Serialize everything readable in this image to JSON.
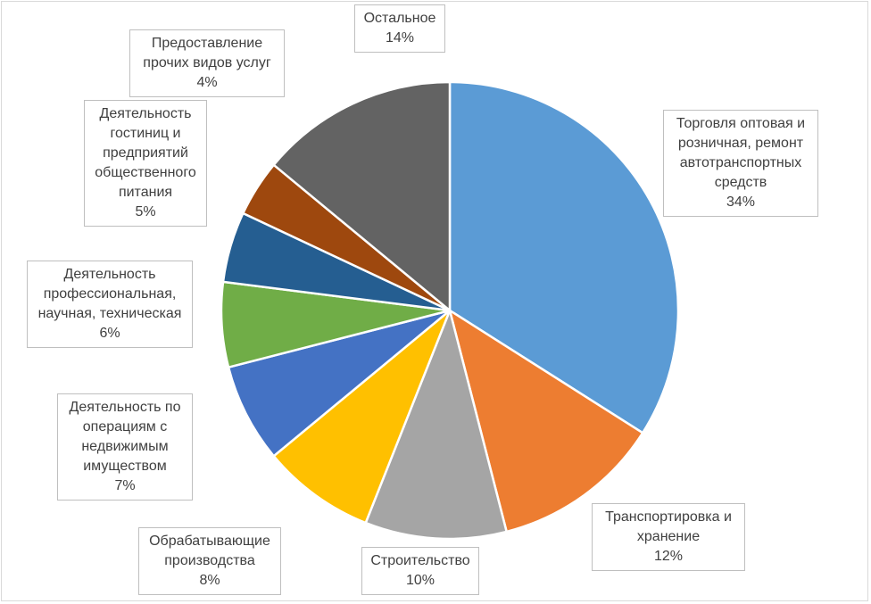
{
  "chart_data": {
    "type": "pie",
    "slices": [
      {
        "label_lines": [
          "Торговля оптовая и",
          "розничная, ремонт",
          "автотранспортных",
          "средств"
        ],
        "percent_label": "34%",
        "value": 34,
        "color": "#5b9bd5"
      },
      {
        "label_lines": [
          "Транспортировка и",
          "хранение"
        ],
        "percent_label": "12%",
        "value": 12,
        "color": "#ed7d31"
      },
      {
        "label_lines": [
          "Строительство"
        ],
        "percent_label": "10%",
        "value": 10,
        "color": "#a5a5a5"
      },
      {
        "label_lines": [
          "Обрабатывающие",
          "производства"
        ],
        "percent_label": "8%",
        "value": 8,
        "color": "#ffc000"
      },
      {
        "label_lines": [
          "Деятельность по",
          "операциям с",
          "недвижимым",
          "имуществом"
        ],
        "percent_label": "7%",
        "value": 7,
        "color": "#4472c4"
      },
      {
        "label_lines": [
          "Деятельность",
          "профессиональная,",
          "научная, техническая"
        ],
        "percent_label": "6%",
        "value": 6,
        "color": "#70ad47"
      },
      {
        "label_lines": [
          "Деятельность",
          "гостиниц и",
          "предприятий",
          "общественного",
          "питания"
        ],
        "percent_label": "5%",
        "value": 5,
        "color": "#255e91"
      },
      {
        "label_lines": [
          "Предоставление",
          "прочих видов услуг"
        ],
        "percent_label": "4%",
        "value": 4,
        "color": "#9e480e"
      },
      {
        "label_lines": [
          "Остальное"
        ],
        "percent_label": "14%",
        "value": 14,
        "color": "#636363"
      }
    ],
    "start_angle_deg": 0,
    "direction": "clockwise",
    "legend": "none"
  }
}
